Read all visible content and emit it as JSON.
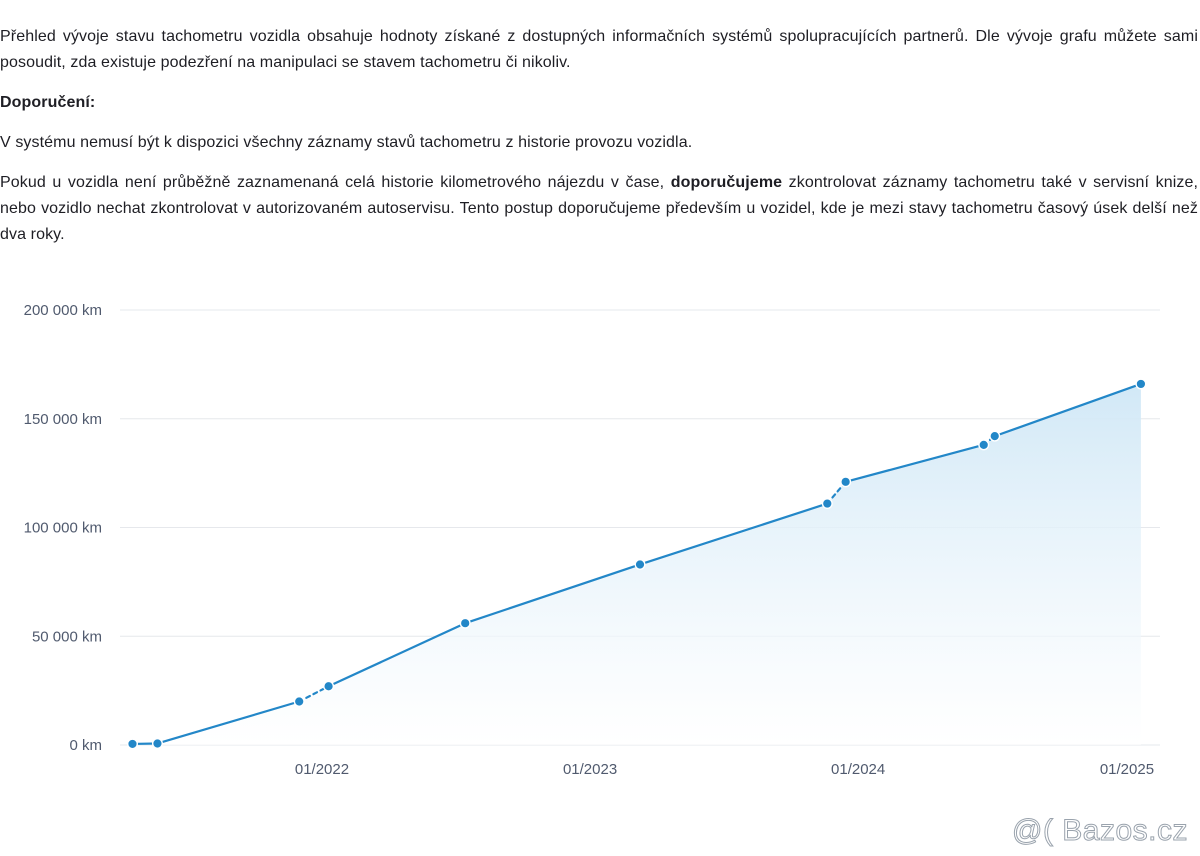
{
  "text": {
    "intro": "Přehled vývoje stavu tachometru vozidla obsahuje hodnoty získané z dostupných informačních systémů spolupracujících partnerů. Dle vývoje grafu můžete sami posoudit, zda existuje podezření na manipulaci se stavem tachometru či nikoliv.",
    "recommendation_heading": "Doporučení:",
    "note": "V systému nemusí být k dispozici všechny záznamy stavů tachometru z historie provozu vozidla.",
    "advice_part1": "Pokud u vozidla není průběžně zaznamenaná celá historie kilometrového nájezdu v čase, ",
    "advice_bold": "doporučujeme",
    "advice_part2": " zkontrolovat záznamy tachometru také v servisní knize, nebo vozidlo nechat zkontrolovat v autorizovaném autoservisu. Tento postup doporučujeme především u vozidel, kde je mezi stavy tachometru časový úsek delší než dva roky."
  },
  "watermark": "@( Bazos.cz",
  "colors": {
    "line": "#2387c8",
    "area_top": "#cfe7f6",
    "area_bottom": "#ffffff",
    "grid": "#e6e8ec",
    "text": "#1e1e24",
    "axis_text": "#505a6e"
  },
  "chart_data": {
    "type": "area",
    "title": "",
    "xlabel": "",
    "ylabel": "",
    "ylim": [
      0,
      200000
    ],
    "xlim": [
      "2021-04-01",
      "2025-02-15"
    ],
    "y_ticks": [
      {
        "value": 0,
        "label": "0 km"
      },
      {
        "value": 50000,
        "label": "50 000 km"
      },
      {
        "value": 100000,
        "label": "100 000 km"
      },
      {
        "value": 150000,
        "label": "150 000 km"
      },
      {
        "value": 200000,
        "label": "200 000 km"
      }
    ],
    "x_ticks": [
      {
        "value": "2022-01-01",
        "label": "01/2022"
      },
      {
        "value": "2023-01-01",
        "label": "01/2023"
      },
      {
        "value": "2024-01-01",
        "label": "01/2024"
      },
      {
        "value": "2025-01-01",
        "label": "01/2025"
      }
    ],
    "grid": "horizontal",
    "legend": "none",
    "series": [
      {
        "points": [
          {
            "x": "2021-04-18",
            "y": 500
          },
          {
            "x": "2021-05-22",
            "y": 700
          },
          {
            "x": "2021-12-01",
            "y": 20000,
            "gap_after": true
          },
          {
            "x": "2022-01-10",
            "y": 27000
          },
          {
            "x": "2022-07-15",
            "y": 56000
          },
          {
            "x": "2023-03-10",
            "y": 83000
          },
          {
            "x": "2023-11-20",
            "y": 111000,
            "gap_after": true
          },
          {
            "x": "2023-12-15",
            "y": 121000
          },
          {
            "x": "2024-06-20",
            "y": 138000,
            "gap_after": true
          },
          {
            "x": "2024-07-05",
            "y": 142000
          },
          {
            "x": "2025-01-20",
            "y": 166000
          }
        ]
      }
    ]
  }
}
